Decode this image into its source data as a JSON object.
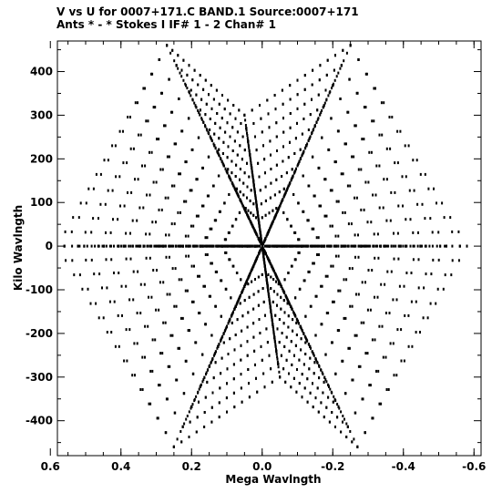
{
  "header": {
    "line1": "V vs U for 0007+171.C BAND.1   Source:0007+171",
    "line2": "Ants * - *     Stokes I  IF# 1 - 2  Chan# 1"
  },
  "colors": {
    "background": "#ffffff",
    "ink": "#000000"
  },
  "chart_data": {
    "type": "scatter",
    "title": "V vs U for 0007+171.C BAND.1   Source:0007+171",
    "subtitle": "Ants * - *     Stokes I  IF# 1 - 2  Chan# 1",
    "xlabel": "Mega Wavlngth",
    "ylabel": "Kilo Wavlngth",
    "xlim": [
      0.58,
      -0.62
    ],
    "ylim": [
      -480,
      470
    ],
    "x_ticks": [
      0.6,
      0.4,
      0.2,
      0.0,
      -0.2,
      -0.4,
      -0.6
    ],
    "x_tick_labels": [
      "0.6",
      "0.4",
      "0.2",
      "0.0",
      "-0.2",
      "-0.4",
      "-0.6"
    ],
    "y_ticks": [
      400,
      300,
      200,
      100,
      0,
      -100,
      -200,
      -300,
      -400
    ],
    "y_tick_labels": [
      "400",
      "300",
      "200",
      "100",
      "0",
      "-100",
      "-200",
      "-300",
      "-400"
    ],
    "grid": false,
    "pattern": "six-arm snowflake uv coverage",
    "arms": [
      {
        "u": 0.05,
        "v": 300
      },
      {
        "u": 0.27,
        "v": 460
      },
      {
        "u": 0.56,
        "v": 0
      },
      {
        "u": 0.25,
        "v": -460
      },
      {
        "u": -0.05,
        "v": -300
      },
      {
        "u": -0.27,
        "v": -460
      },
      {
        "u": -0.58,
        "v": 0
      },
      {
        "u": -0.25,
        "v": 460
      }
    ]
  }
}
